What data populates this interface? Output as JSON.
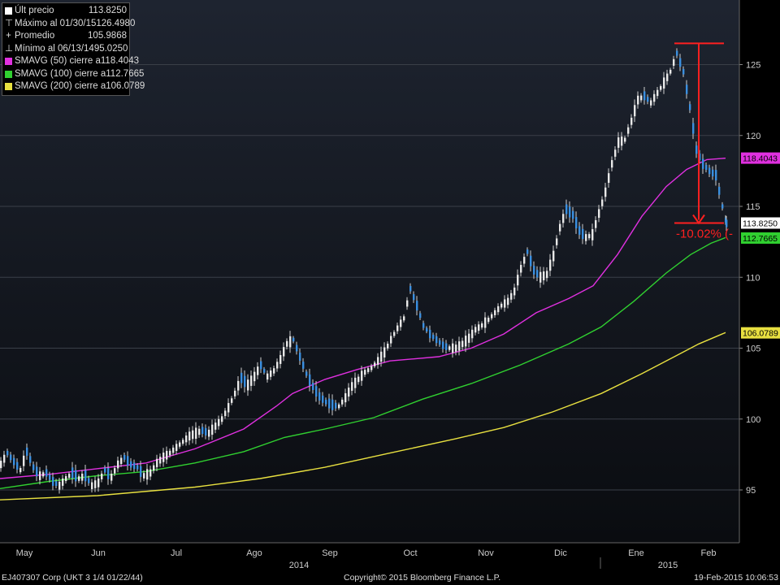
{
  "legend": {
    "items": [
      {
        "label": "Últ precio",
        "value": "113.8250",
        "icon": "square-icon"
      },
      {
        "label": "Máximo al 01/30/15",
        "value": "126.4980",
        "icon": "high-marker-icon"
      },
      {
        "label": "Promedio",
        "value": "105.9868",
        "icon": "average-marker-icon"
      },
      {
        "label": "Mínimo al 06/13/14",
        "value": "95.0250",
        "icon": "low-marker-icon"
      },
      {
        "label": "SMAVG (50) cierre a",
        "value": "118.4043",
        "color": "#e030e0"
      },
      {
        "label": "SMAVG (100) cierre a",
        "value": "112.7665",
        "color": "#30d030"
      },
      {
        "label": "SMAVG (200) cierre a",
        "value": "106.0789",
        "color": "#e8e040"
      }
    ]
  },
  "chart_data": {
    "type": "line",
    "x": [
      "May",
      "Jun",
      "Jul",
      "Ago",
      "Sep",
      "Oct",
      "Nov",
      "Dic",
      "Ene",
      "Feb"
    ],
    "x_tick_labels": [
      "May",
      "Jun",
      "Jul",
      "Ago",
      "Sep",
      "Oct",
      "Nov",
      "Dic",
      "Ene",
      "Feb"
    ],
    "year_labels": [
      "2014",
      "2015"
    ],
    "y_ticks": [
      95,
      100,
      105,
      110,
      115,
      120,
      125
    ],
    "ylim": [
      91,
      128
    ],
    "series": [
      {
        "name": "Últ precio",
        "color": "#ffffff",
        "points": [
          [
            0,
            96.8
          ],
          [
            8,
            97.6
          ],
          [
            16,
            97.0
          ],
          [
            24,
            96.4
          ],
          [
            32,
            97.7
          ],
          [
            40,
            96.6
          ],
          [
            48,
            96.0
          ],
          [
            56,
            96.2
          ],
          [
            64,
            95.6
          ],
          [
            72,
            95.3
          ],
          [
            80,
            95.8
          ],
          [
            88,
            96.2
          ],
          [
            96,
            95.8
          ],
          [
            104,
            96.0
          ],
          [
            112,
            95.3
          ],
          [
            120,
            95.5
          ],
          [
            128,
            96.4
          ],
          [
            136,
            95.9
          ],
          [
            144,
            96.8
          ],
          [
            152,
            97.3
          ],
          [
            160,
            96.8
          ],
          [
            168,
            96.6
          ],
          [
            176,
            96.0
          ],
          [
            184,
            96.2
          ],
          [
            192,
            96.9
          ],
          [
            200,
            97.3
          ],
          [
            208,
            97.6
          ],
          [
            216,
            98.0
          ],
          [
            224,
            98.4
          ],
          [
            232,
            98.8
          ],
          [
            240,
            99.0
          ],
          [
            248,
            99.2
          ],
          [
            256,
            99.0
          ],
          [
            264,
            99.5
          ],
          [
            272,
            100.0
          ],
          [
            280,
            100.8
          ],
          [
            288,
            101.8
          ],
          [
            296,
            102.9
          ],
          [
            304,
            102.4
          ],
          [
            312,
            103.0
          ],
          [
            320,
            103.8
          ],
          [
            328,
            103.0
          ],
          [
            336,
            103.4
          ],
          [
            344,
            104.2
          ],
          [
            352,
            105.3
          ],
          [
            360,
            105.6
          ],
          [
            368,
            104.4
          ],
          [
            376,
            103.2
          ],
          [
            384,
            102.3
          ],
          [
            392,
            101.6
          ],
          [
            400,
            101.2
          ],
          [
            408,
            101.0
          ],
          [
            416,
            100.9
          ],
          [
            424,
            101.5
          ],
          [
            432,
            102.3
          ],
          [
            440,
            102.8
          ],
          [
            448,
            103.3
          ],
          [
            456,
            103.6
          ],
          [
            464,
            104.1
          ],
          [
            472,
            104.7
          ],
          [
            480,
            105.6
          ],
          [
            488,
            106.4
          ],
          [
            496,
            107.1
          ],
          [
            504,
            109.2
          ],
          [
            512,
            108.0
          ],
          [
            520,
            106.6
          ],
          [
            528,
            106.0
          ],
          [
            536,
            105.6
          ],
          [
            544,
            105.2
          ],
          [
            552,
            105.0
          ],
          [
            560,
            105.0
          ],
          [
            568,
            105.3
          ],
          [
            576,
            105.7
          ],
          [
            584,
            106.3
          ],
          [
            592,
            106.6
          ],
          [
            600,
            107.0
          ],
          [
            608,
            107.5
          ],
          [
            616,
            108.0
          ],
          [
            624,
            108.3
          ],
          [
            632,
            109.0
          ],
          [
            640,
            110.6
          ],
          [
            648,
            111.8
          ],
          [
            656,
            110.5
          ],
          [
            664,
            110.0
          ],
          [
            672,
            110.2
          ],
          [
            680,
            111.5
          ],
          [
            688,
            113.5
          ],
          [
            696,
            114.8
          ],
          [
            704,
            114.4
          ],
          [
            712,
            113.3
          ],
          [
            720,
            112.8
          ],
          [
            728,
            113.0
          ],
          [
            736,
            114.5
          ],
          [
            744,
            116.0
          ],
          [
            752,
            118.0
          ],
          [
            760,
            119.5
          ],
          [
            768,
            119.7
          ],
          [
            776,
            121.0
          ],
          [
            784,
            122.5
          ],
          [
            792,
            122.8
          ],
          [
            800,
            122.3
          ],
          [
            808,
            123.0
          ],
          [
            816,
            123.7
          ],
          [
            824,
            124.5
          ],
          [
            832,
            125.8
          ],
          [
            840,
            124.5
          ],
          [
            848,
            122.0
          ],
          [
            856,
            119.0
          ],
          [
            864,
            118.0
          ],
          [
            872,
            117.5
          ],
          [
            880,
            117.2
          ],
          [
            888,
            115.0
          ],
          [
            893,
            113.8
          ]
        ]
      },
      {
        "name": "SMAVG (50) cierre a",
        "color": "#e030e0",
        "points": [
          [
            0,
            95.8
          ],
          [
            60,
            96.1
          ],
          [
            120,
            96.5
          ],
          [
            180,
            96.9
          ],
          [
            240,
            97.9
          ],
          [
            300,
            99.3
          ],
          [
            340,
            100.9
          ],
          [
            360,
            101.8
          ],
          [
            400,
            102.8
          ],
          [
            440,
            103.5
          ],
          [
            480,
            104.1
          ],
          [
            540,
            104.4
          ],
          [
            580,
            105.0
          ],
          [
            620,
            106.0
          ],
          [
            660,
            107.5
          ],
          [
            700,
            108.5
          ],
          [
            730,
            109.4
          ],
          [
            760,
            111.6
          ],
          [
            790,
            114.3
          ],
          [
            820,
            116.4
          ],
          [
            845,
            117.6
          ],
          [
            870,
            118.3
          ],
          [
            893,
            118.4
          ]
        ]
      },
      {
        "name": "SMAVG (100) cierre a",
        "color": "#30d030",
        "points": [
          [
            0,
            95.1
          ],
          [
            60,
            95.6
          ],
          [
            120,
            96.0
          ],
          [
            180,
            96.3
          ],
          [
            240,
            96.9
          ],
          [
            300,
            97.7
          ],
          [
            350,
            98.7
          ],
          [
            400,
            99.3
          ],
          [
            460,
            100.1
          ],
          [
            520,
            101.4
          ],
          [
            580,
            102.5
          ],
          [
            640,
            103.8
          ],
          [
            700,
            105.3
          ],
          [
            740,
            106.5
          ],
          [
            780,
            108.3
          ],
          [
            820,
            110.3
          ],
          [
            850,
            111.6
          ],
          [
            875,
            112.4
          ],
          [
            893,
            112.8
          ]
        ]
      },
      {
        "name": "SMAVG (200) cierre a",
        "color": "#e8e040",
        "points": [
          [
            0,
            94.3
          ],
          [
            120,
            94.6
          ],
          [
            240,
            95.2
          ],
          [
            320,
            95.8
          ],
          [
            400,
            96.6
          ],
          [
            480,
            97.6
          ],
          [
            560,
            98.6
          ],
          [
            620,
            99.4
          ],
          [
            680,
            100.5
          ],
          [
            740,
            101.8
          ],
          [
            790,
            103.2
          ],
          [
            830,
            104.4
          ],
          [
            860,
            105.3
          ],
          [
            893,
            106.1
          ]
        ]
      }
    ],
    "drawdown_annotation": {
      "label": "-10.02% (-",
      "from": 126.498,
      "to": 113.825,
      "color": "#ff2020"
    },
    "price_tags": [
      {
        "value": 118.4043,
        "label": "118.4043",
        "color": "#e030e0"
      },
      {
        "value": 113.825,
        "label": "113.8250",
        "color": "#ffffff"
      },
      {
        "value": 112.7665,
        "label": "112.7665",
        "color": "#30d030"
      },
      {
        "value": 106.0789,
        "label": "106.0789",
        "color": "#e8e040"
      }
    ]
  },
  "footer": {
    "left": "EJ407307 Corp (UKT 3 1/4 01/22/44)",
    "center": "Copyright© 2015 Bloomberg Finance L.P.",
    "right": "19-Feb-2015 10:06:53"
  }
}
